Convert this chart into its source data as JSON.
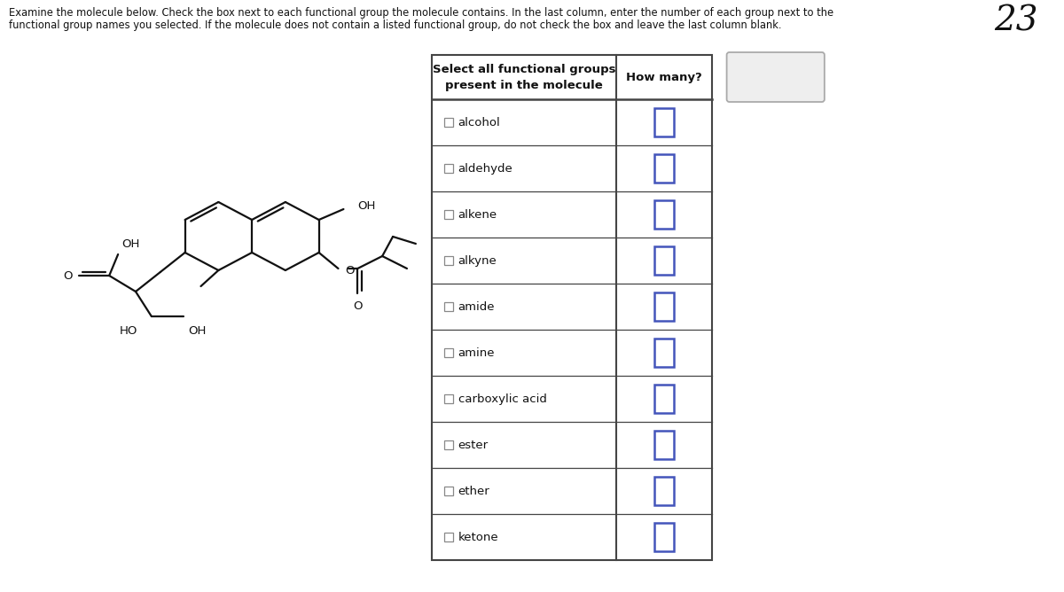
{
  "title_line1": "Examine the molecule below. Check the box next to each functional group the molecule contains. In the last column, enter the number of each group next to the",
  "title_line2": "functional group names you selected. If the molecule does not contain a listed functional group, do not check the box and leave the last column blank.",
  "number_label": "23",
  "col1_header": "Select all functional groups\npresent in the molecule",
  "col2_header": "How many?",
  "functional_groups": [
    "alcohol",
    "aldehyde",
    "alkene",
    "alkyne",
    "amide",
    "amine",
    "carboxylic acid",
    "ester",
    "ether",
    "ketone"
  ],
  "bg_color": "#ffffff",
  "table_border_color": "#444444",
  "input_box_color": "#4455bb",
  "undo_button_bg": "#eeeeee",
  "undo_button_border": "#aaaaaa"
}
